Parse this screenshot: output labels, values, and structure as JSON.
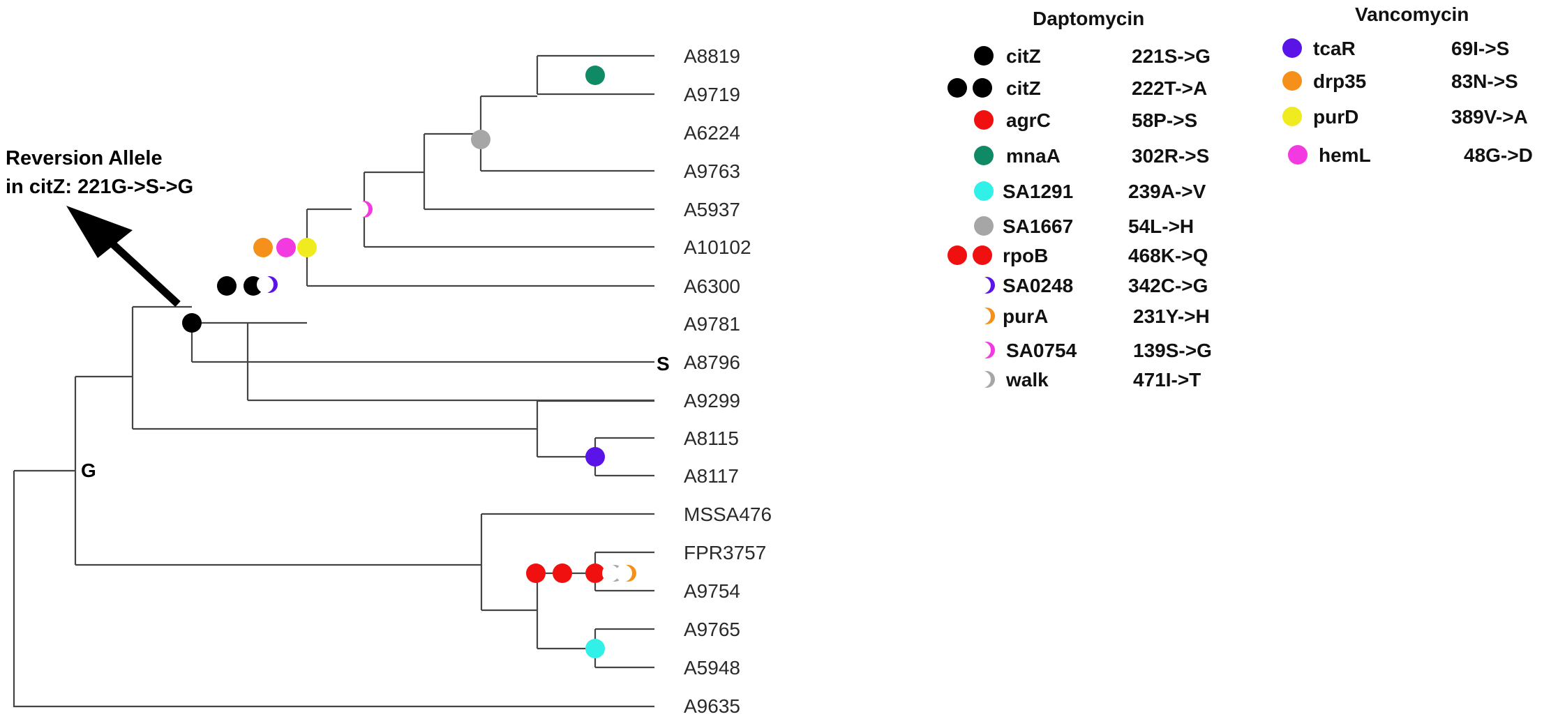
{
  "colors": {
    "black": "#000000",
    "red": "#f01010",
    "teal": "#0f8a65",
    "cyan": "#30f0e8",
    "gray": "#a6a6a6",
    "orange": "#f5901a",
    "magenta": "#f23ae0",
    "yellow": "#f0ea20",
    "purple": "#5a14e8"
  },
  "annotation": {
    "line1": "Reversion Allele",
    "line2": "in citZ: 221G->S->G"
  },
  "node_labels": {
    "g": "G",
    "s": "S"
  },
  "leaves": [
    "A8819",
    "A9719",
    "A6224",
    "A9763",
    "A5937",
    "A10102",
    "A6300",
    "A9781",
    "A8796",
    "A9299",
    "A8115",
    "A8117",
    "MSSA476",
    "FPR3757",
    "A9754",
    "A9765",
    "A5948",
    "A9635"
  ],
  "legend": {
    "daptomycin": {
      "title": "Daptomycin",
      "entries": [
        {
          "gene": "citZ",
          "mutation": "221S->G",
          "marker": "circle",
          "color": "black",
          "count": 1
        },
        {
          "gene": "citZ",
          "mutation": "222T->A",
          "marker": "circle",
          "color": "black",
          "count": 2
        },
        {
          "gene": "agrC",
          "mutation": "58P->S",
          "marker": "circle",
          "color": "red",
          "count": 1
        },
        {
          "gene": "mnaA",
          "mutation": "302R->S",
          "marker": "circle",
          "color": "teal",
          "count": 1
        },
        {
          "gene": "SA1291",
          "mutation": "239A->V",
          "marker": "circle",
          "color": "cyan",
          "count": 1
        },
        {
          "gene": "SA1667",
          "mutation": "54L->H",
          "marker": "circle",
          "color": "gray",
          "count": 1
        },
        {
          "gene": "rpoB",
          "mutation": "468K->Q",
          "marker": "circle",
          "color": "red",
          "count": 2
        },
        {
          "gene": "SA0248",
          "mutation": "342C->G",
          "marker": "crescent",
          "color": "purple",
          "count": 1
        },
        {
          "gene": "purA",
          "mutation": "231Y->H",
          "marker": "crescent",
          "color": "orange",
          "count": 1
        },
        {
          "gene": "SA0754",
          "mutation": "139S->G",
          "marker": "crescent",
          "color": "magenta",
          "count": 1
        },
        {
          "gene": "walk",
          "mutation": "471I->T",
          "marker": "crescent",
          "color": "gray",
          "count": 1
        }
      ]
    },
    "vancomycin": {
      "title": "Vancomycin",
      "entries": [
        {
          "gene": "tcaR",
          "mutation": "69I->S",
          "marker": "circle",
          "color": "purple",
          "count": 1
        },
        {
          "gene": "drp35",
          "mutation": "83N->S",
          "marker": "circle",
          "color": "orange",
          "count": 1
        },
        {
          "gene": "purD",
          "mutation": "389V->A",
          "marker": "circle",
          "color": "yellow",
          "count": 1
        },
        {
          "gene": "hemL",
          "mutation": "48G->D",
          "marker": "circle",
          "color": "magenta",
          "count": 1
        }
      ]
    }
  }
}
